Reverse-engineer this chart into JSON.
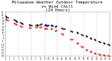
{
  "title": "Milwaukee Weather Outdoor Temperature\nvs Wind Chill\n(24 Hours)",
  "title_fontsize": 4.2,
  "background_color": "#ffffff",
  "grid_color": "#aaaaaa",
  "xlim": [
    0,
    24
  ],
  "ylim": [
    -30,
    45
  ],
  "temp_color": "#000000",
  "windchill_color": "#ff0000",
  "blue_color": "#0000ff",
  "temp_data": [
    [
      0.0,
      38
    ],
    [
      0.3,
      37
    ],
    [
      0.5,
      36
    ],
    [
      2.0,
      32
    ],
    [
      2.3,
      31
    ],
    [
      2.5,
      30
    ],
    [
      2.7,
      29
    ],
    [
      3.5,
      27
    ],
    [
      3.8,
      26
    ],
    [
      4.0,
      25
    ],
    [
      5.5,
      24
    ],
    [
      5.7,
      23
    ],
    [
      6.0,
      22
    ],
    [
      7.0,
      23
    ],
    [
      7.3,
      24
    ],
    [
      7.5,
      23
    ],
    [
      8.0,
      24
    ],
    [
      8.3,
      25
    ],
    [
      9.0,
      23
    ],
    [
      9.2,
      24
    ],
    [
      9.5,
      23
    ],
    [
      9.8,
      22
    ],
    [
      10.5,
      22
    ],
    [
      10.7,
      23
    ],
    [
      11.5,
      20
    ],
    [
      11.7,
      21
    ],
    [
      13.0,
      18
    ],
    [
      13.3,
      17
    ],
    [
      13.5,
      16
    ],
    [
      15.0,
      13
    ],
    [
      15.3,
      12
    ],
    [
      16.5,
      10
    ],
    [
      16.7,
      9
    ],
    [
      17.5,
      7
    ],
    [
      17.7,
      6
    ],
    [
      18.5,
      4
    ],
    [
      18.7,
      3
    ],
    [
      19.5,
      1
    ],
    [
      19.7,
      0
    ],
    [
      20.5,
      -2
    ],
    [
      20.7,
      -3
    ],
    [
      21.5,
      -5
    ],
    [
      21.7,
      -6
    ],
    [
      22.5,
      -8
    ],
    [
      22.7,
      -9
    ],
    [
      23.5,
      -10
    ],
    [
      23.8,
      -11
    ]
  ],
  "windchill_data": [
    [
      0.0,
      33
    ],
    [
      0.3,
      32
    ],
    [
      0.5,
      31
    ],
    [
      2.0,
      26
    ],
    [
      2.3,
      25
    ],
    [
      2.5,
      24
    ],
    [
      3.5,
      21
    ],
    [
      3.8,
      20
    ],
    [
      5.5,
      19
    ],
    [
      5.7,
      18
    ],
    [
      7.0,
      19
    ],
    [
      7.3,
      20
    ],
    [
      8.0,
      19
    ],
    [
      8.3,
      20
    ],
    [
      9.0,
      17
    ],
    [
      9.2,
      18
    ],
    [
      9.5,
      16
    ],
    [
      10.5,
      16
    ],
    [
      10.7,
      17
    ],
    [
      11.5,
      13
    ],
    [
      11.7,
      14
    ],
    [
      13.0,
      8
    ],
    [
      13.3,
      7
    ],
    [
      15.0,
      -1
    ],
    [
      15.3,
      -2
    ],
    [
      16.5,
      -8
    ],
    [
      16.7,
      -9
    ],
    [
      17.5,
      -14
    ],
    [
      17.7,
      -15
    ],
    [
      18.5,
      -19
    ],
    [
      18.7,
      -20
    ],
    [
      19.5,
      -22
    ],
    [
      19.7,
      -23
    ],
    [
      20.5,
      -25
    ],
    [
      20.7,
      -26
    ],
    [
      21.5,
      -27
    ],
    [
      21.7,
      -28
    ],
    [
      22.5,
      -28
    ],
    [
      22.7,
      -29
    ],
    [
      23.5,
      -29
    ],
    [
      23.8,
      -30
    ]
  ],
  "blue_data": [
    [
      9.3,
      22
    ],
    [
      9.6,
      21
    ],
    [
      10.6,
      22
    ],
    [
      10.8,
      21
    ]
  ],
  "vgrid_positions": [
    0,
    3,
    6,
    9,
    12,
    15,
    18,
    21,
    24
  ],
  "xtick_positions": [
    0,
    1,
    2,
    3,
    4,
    5,
    6,
    7,
    8,
    9,
    10,
    11,
    12,
    13,
    14,
    15,
    16,
    17,
    18,
    19,
    20,
    21,
    22,
    23,
    24
  ],
  "ytick_positions": [
    -30,
    -25,
    -20,
    -15,
    -10,
    -5,
    0,
    5,
    10,
    15,
    20,
    25,
    30,
    35,
    40,
    45
  ],
  "dot_size": 2.5
}
